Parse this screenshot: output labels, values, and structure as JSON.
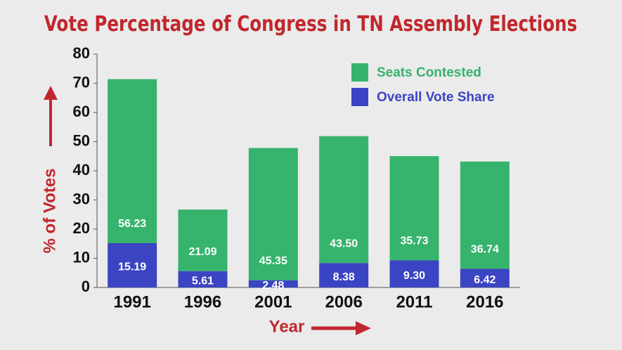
{
  "chart_data": {
    "type": "stacked_bar",
    "title": "Vote Percentage of Congress in TN Assembly Elections",
    "x_label": "Year",
    "y_label": "% of Votes",
    "categories": [
      "1991",
      "1996",
      "2001",
      "2006",
      "2011",
      "2016"
    ],
    "series": [
      {
        "name": "Overall Vote Share",
        "color": "#3b44c2",
        "values": [
          15.19,
          5.61,
          2.48,
          8.38,
          9.3,
          6.42
        ],
        "value_labels": [
          "15.19",
          "5.61",
          "2.48",
          "8.38",
          "9.30",
          "6.42"
        ]
      },
      {
        "name": "Seats Contested",
        "color": "#36b36d",
        "values": [
          56.23,
          21.09,
          45.35,
          43.5,
          35.73,
          36.74
        ],
        "value_labels": [
          "56.23",
          "21.09",
          "45.35",
          "43.50",
          "35.73",
          "36.74"
        ]
      }
    ],
    "ylim": [
      0,
      80
    ],
    "yticks": [
      0,
      10,
      20,
      30,
      40,
      50,
      60,
      70,
      80
    ],
    "grid": false,
    "legend": "top-right"
  }
}
